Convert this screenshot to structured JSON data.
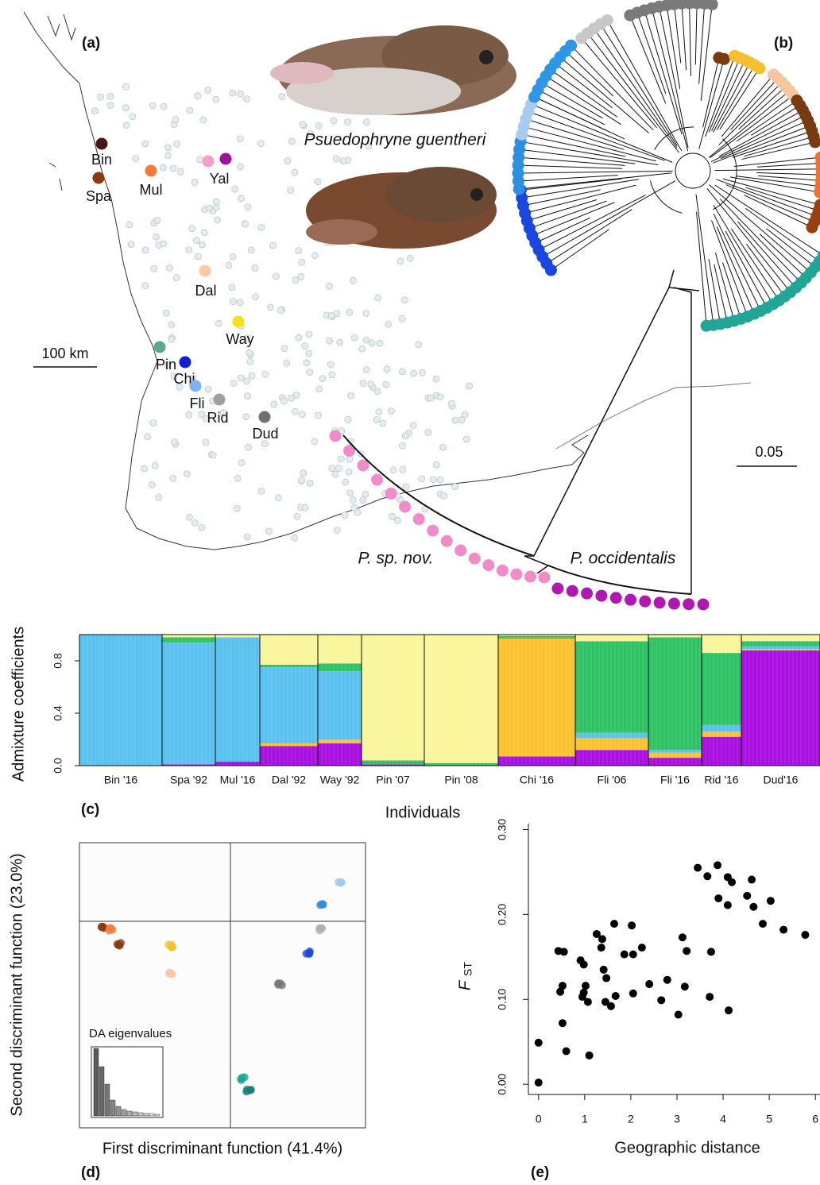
{
  "panel_a": {
    "label": "(a)",
    "scale_bar": "100 km",
    "sites": [
      {
        "label": "Bin",
        "colors": [
          "#4a1515"
        ]
      },
      {
        "label": "Spa",
        "colors": [
          "#8b3a10"
        ]
      },
      {
        "label": "Mul",
        "colors": [
          "#f47a3a"
        ]
      },
      {
        "label": "Yal",
        "colors": [
          "#f5a0c8",
          "#a0109a"
        ]
      },
      {
        "label": "Dal",
        "colors": [
          "#f8c8a8"
        ]
      },
      {
        "label": "Way",
        "colors": [
          "#f5e020"
        ]
      },
      {
        "label": "Pin",
        "colors": [
          "#5aa890"
        ]
      },
      {
        "label": "Chi",
        "colors": [
          "#1020d0"
        ]
      },
      {
        "label": "Fli",
        "colors": [
          "#80b0f0"
        ]
      },
      {
        "label": "Rid",
        "colors": [
          "#a0a0a0"
        ]
      },
      {
        "label": "Dud",
        "colors": [
          "#707070"
        ]
      }
    ]
  },
  "panel_b": {
    "label": "(b)",
    "species": "Psuedophryne guentheri",
    "scale_bar": "0.05",
    "clades": [
      "P. sp. nov.",
      "P. occidentalis"
    ]
  },
  "panel_d": {
    "label": "(d)",
    "x_label": "First discriminant function (41.4%)",
    "y_label": "Second discriminant function (23.0%)",
    "inset_title": "DA eigenvalues"
  },
  "chart_data": [
    {
      "type": "bar",
      "stacked": true,
      "panel_label": "(c)",
      "y_label": "Admixture coefficients",
      "x_label": "Individuals",
      "categories": [
        "Bin  '16",
        "Spa '92",
        "Mul '16",
        "Dal '92",
        "Way '92",
        "Pin '07",
        "Pin '08",
        "Chi '16",
        "Fli '06",
        "Fli '16",
        "Rid '16",
        "Dud'16"
      ],
      "series": [
        {
          "color": "#a90fe0",
          "values": [
            0,
            0.01,
            0.03,
            0.15,
            0.17,
            0.01,
            0,
            0.07,
            0.12,
            0.06,
            0.22,
            0.88
          ]
        },
        {
          "color": "#f9c22e",
          "values": [
            0,
            0,
            0,
            0.02,
            0.03,
            0,
            0,
            0.9,
            0.09,
            0.04,
            0.04,
            0.01
          ]
        },
        {
          "color": "#5bc2f0",
          "values": [
            1,
            0.93,
            0.95,
            0.58,
            0.52,
            0,
            0,
            0,
            0.04,
            0.02,
            0.05,
            0.02
          ]
        },
        {
          "color": "#2ec265",
          "values": [
            0,
            0.04,
            0,
            0.02,
            0.06,
            0.03,
            0.02,
            0.02,
            0.7,
            0.86,
            0.55,
            0.04
          ]
        },
        {
          "color": "#f8f59a",
          "values": [
            0,
            0.02,
            0.02,
            0.23,
            0.22,
            0.96,
            0.98,
            0.01,
            0.05,
            0.02,
            0.14,
            0.05
          ]
        }
      ],
      "ylim": [
        0,
        1
      ],
      "yticks": [
        {
          "value": 0,
          "label": "0.0"
        },
        0.4,
        0.8
      ]
    },
    {
      "type": "scatter",
      "panel_label": "(e)",
      "x_label": "Geographic distance",
      "y_label": "F",
      "y_label_subscript": "ST",
      "color": "#000000",
      "x": [
        0,
        0,
        0.6,
        1.1,
        0.52,
        0.47,
        0.52,
        0.43,
        0.55,
        0.91,
        0.98,
        0.98,
        1.02,
        0.95,
        1.07,
        1.26,
        1.38,
        1.36,
        1.41,
        1.47,
        1.45,
        1.57,
        1.64,
        1.67,
        1.86,
        2.02,
        2.05,
        2.05,
        2.24,
        2.4,
        2.66,
        2.79,
        3.03,
        3.12,
        3.21,
        3.17,
        3.45,
        3.66,
        3.88,
        3.9,
        4.1,
        4.19,
        4.1,
        4.52,
        4.62,
        4.66,
        5.03,
        4.86,
        5.31,
        5.78,
        3.74,
        3.71,
        4.12
      ],
      "values": [
        0.002,
        0.049,
        0.039,
        0.034,
        0.072,
        0.109,
        0.116,
        0.157,
        0.156,
        0.146,
        0.141,
        0.108,
        0.116,
        0.103,
        0.097,
        0.177,
        0.171,
        0.161,
        0.135,
        0.125,
        0.097,
        0.092,
        0.189,
        0.104,
        0.153,
        0.187,
        0.153,
        0.107,
        0.161,
        0.118,
        0.099,
        0.123,
        0.082,
        0.173,
        0.157,
        0.115,
        0.255,
        0.245,
        0.258,
        0.219,
        0.244,
        0.238,
        0.211,
        0.222,
        0.241,
        0.209,
        0.216,
        0.189,
        0.182,
        0.176,
        0.156,
        0.103,
        0.087
      ],
      "xlim": [
        -0.22,
        6.1
      ],
      "ylim": [
        -0.012,
        0.307
      ],
      "xticks": [
        0,
        1,
        2,
        3,
        4,
        5,
        6
      ],
      "yticks": [
        {
          "value": 0,
          "label": "0.00"
        },
        {
          "value": 0.1,
          "label": "0.10"
        },
        {
          "value": 0.2,
          "label": "0.20"
        },
        {
          "value": 0.3,
          "label": "0.30"
        }
      ]
    }
  ]
}
